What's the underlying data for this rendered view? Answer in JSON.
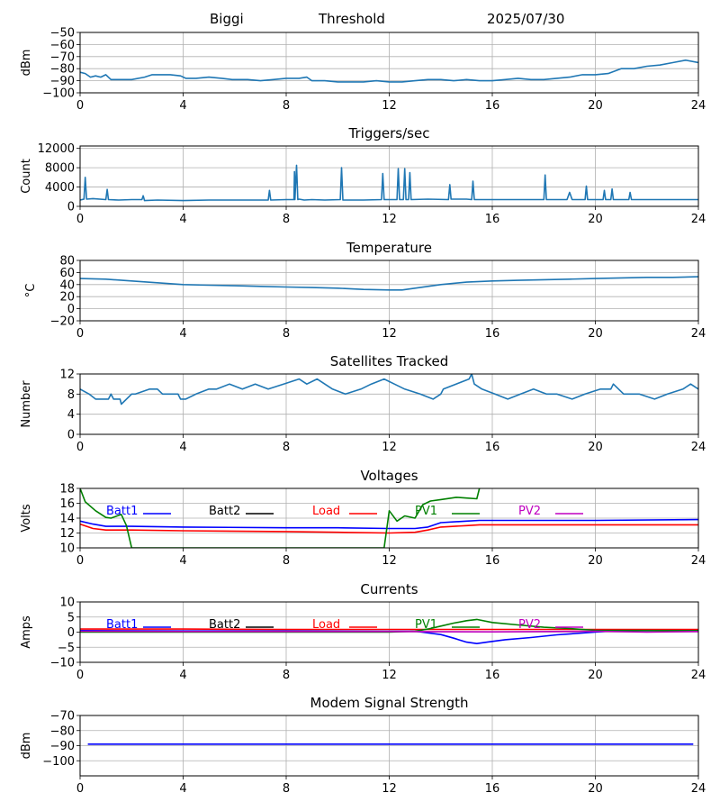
{
  "header": {
    "site": "Biggi",
    "mode": "Threshold",
    "date": "2025/07/30"
  },
  "colors": {
    "default": "#1f77b4",
    "batt1": "#0000ff",
    "batt2": "#000000",
    "load": "#ff0000",
    "pv1": "#008000",
    "pv2": "#bf00bf"
  },
  "chart_data": [
    {
      "type": "line",
      "title": "",
      "xlabel": "",
      "ylabel": "dBm",
      "xlim": [
        0,
        24
      ],
      "ylim": [
        -100,
        -50
      ],
      "xticks": [
        0,
        4,
        8,
        12,
        16,
        20,
        24
      ],
      "yticks": [
        -100,
        -90,
        -80,
        -70,
        -60,
        -50
      ],
      "grid": true,
      "series": [
        {
          "color": "#1f77b4",
          "x": [
            0,
            0.2,
            0.4,
            0.6,
            0.8,
            1.0,
            1.2,
            1.5,
            2.0,
            2.5,
            2.8,
            3.0,
            3.5,
            3.9,
            4.1,
            4.5,
            5.0,
            5.5,
            5.9,
            6.1,
            6.5,
            7.0,
            7.5,
            8.0,
            8.5,
            8.8,
            9.0,
            9.5,
            10,
            10.5,
            11,
            11.5,
            12,
            12.5,
            13,
            13.5,
            14,
            14.5,
            15,
            15.5,
            16,
            16.5,
            17,
            17.5,
            18,
            18.5,
            19,
            19.5,
            20,
            20.5,
            21,
            21.5,
            22,
            22.5,
            23,
            23.5,
            24
          ],
          "y": [
            -83,
            -84,
            -87,
            -86,
            -87,
            -85,
            -89,
            -89,
            -89,
            -87,
            -85,
            -85,
            -85,
            -86,
            -88,
            -88,
            -87,
            -88,
            -89,
            -89,
            -89,
            -90,
            -89,
            -88,
            -88,
            -87,
            -90,
            -90,
            -91,
            -91,
            -91,
            -90,
            -91,
            -91,
            -90,
            -89,
            -89,
            -90,
            -89,
            -90,
            -90,
            -89,
            -88,
            -89,
            -89,
            -88,
            -87,
            -85,
            -85,
            -84,
            -80,
            -80,
            -78,
            -77,
            -75,
            -73,
            -75
          ]
        }
      ]
    },
    {
      "type": "line",
      "title": "Triggers/sec",
      "xlabel": "",
      "ylabel": "Count",
      "xlim": [
        0,
        24
      ],
      "ylim": [
        0,
        12500
      ],
      "xticks": [
        0,
        4,
        8,
        12,
        16,
        20,
        24
      ],
      "yticks": [
        0,
        4000,
        8000,
        12000
      ],
      "grid": true,
      "series": [
        {
          "color": "#1f77b4",
          "x": [
            0,
            0.15,
            0.2,
            0.25,
            0.5,
            1.0,
            1.05,
            1.1,
            1.5,
            2.0,
            2.4,
            2.45,
            2.5,
            3.0,
            4.0,
            5.0,
            6.0,
            7.3,
            7.35,
            7.4,
            8.0,
            8.3,
            8.32,
            8.34,
            8.4,
            8.45,
            8.5,
            8.7,
            9.0,
            9.5,
            10.1,
            10.15,
            10.2,
            11.0,
            11.7,
            11.75,
            11.8,
            12.3,
            12.35,
            12.4,
            12.55,
            12.6,
            12.65,
            12.75,
            12.8,
            12.85,
            13.5,
            14.3,
            14.35,
            14.4,
            15.0,
            15.2,
            15.25,
            15.3,
            16.0,
            17.0,
            18.0,
            18.05,
            18.1,
            18.9,
            19.0,
            19.1,
            19.6,
            19.65,
            19.7,
            20.3,
            20.35,
            20.4,
            20.6,
            20.65,
            20.7,
            21.3,
            21.35,
            21.4,
            22,
            23,
            23.5,
            24
          ],
          "y": [
            1300,
            1500,
            6000,
            1500,
            1600,
            1400,
            3500,
            1400,
            1300,
            1400,
            1400,
            2200,
            1200,
            1300,
            1200,
            1300,
            1300,
            1300,
            3300,
            1300,
            1400,
            1400,
            7200,
            1400,
            8500,
            1400,
            1500,
            1300,
            1400,
            1300,
            1400,
            8000,
            1300,
            1300,
            1400,
            6800,
            1400,
            1400,
            7800,
            1400,
            1400,
            7800,
            1400,
            1400,
            7000,
            1400,
            1500,
            1400,
            4500,
            1500,
            1500,
            1400,
            5200,
            1400,
            1400,
            1400,
            1400,
            6500,
            1400,
            1400,
            2900,
            1400,
            1400,
            4200,
            1400,
            1400,
            3300,
            1400,
            1400,
            3600,
            1400,
            1400,
            2900,
            1400,
            1400,
            1400,
            1400,
            1400
          ]
        }
      ]
    },
    {
      "type": "line",
      "title": "Temperature",
      "xlabel": "",
      "ylabel": "°C",
      "xlim": [
        0,
        24
      ],
      "ylim": [
        -20,
        80
      ],
      "xticks": [
        0,
        4,
        8,
        12,
        16,
        20,
        24
      ],
      "yticks": [
        -20,
        0,
        20,
        40,
        60,
        80
      ],
      "grid": true,
      "series": [
        {
          "color": "#1f77b4",
          "x": [
            0,
            1,
            2,
            3,
            4,
            5,
            6,
            7,
            8,
            9,
            10,
            11,
            12,
            12.5,
            13,
            14,
            15,
            16,
            17,
            18,
            19,
            20,
            21,
            22,
            23,
            24
          ],
          "y": [
            50,
            49,
            46,
            43,
            40,
            39,
            38,
            37,
            36,
            35,
            34,
            32,
            31,
            31,
            34,
            40,
            44,
            46,
            47,
            48,
            49,
            50,
            51,
            52,
            52,
            53
          ]
        }
      ]
    },
    {
      "type": "line",
      "title": "Satellites Tracked",
      "xlabel": "",
      "ylabel": "Number",
      "xlim": [
        0,
        24
      ],
      "ylim": [
        0,
        12
      ],
      "xticks": [
        0,
        4,
        8,
        12,
        16,
        20,
        24
      ],
      "yticks": [
        0,
        4,
        8,
        12
      ],
      "grid": true,
      "series": [
        {
          "color": "#1f77b4",
          "x": [
            0,
            0.35,
            0.6,
            1.1,
            1.2,
            1.3,
            1.35,
            1.55,
            1.6,
            2.0,
            2.15,
            2.7,
            3.0,
            3.2,
            3.3,
            3.6,
            3.8,
            3.9,
            4.1,
            4.5,
            5.0,
            5.3,
            5.8,
            6.3,
            6.8,
            7.3,
            7.9,
            8.5,
            8.8,
            9.2,
            9.8,
            10.3,
            10.9,
            11.3,
            11.8,
            12.2,
            12.6,
            13.2,
            13.7,
            14.0,
            14.1,
            15.1,
            15.2,
            15.3,
            15.6,
            16.1,
            16.6,
            17.1,
            17.6,
            18.1,
            18.5,
            19.1,
            19.6,
            20.2,
            20.6,
            20.7,
            21.1,
            21.7,
            22.3,
            22.8,
            23.4,
            23.7,
            24
          ],
          "y": [
            9,
            8,
            7,
            7,
            8,
            7,
            7,
            7,
            6,
            8,
            8,
            9,
            9,
            8,
            8,
            8,
            8,
            7,
            7,
            8,
            9,
            9,
            10,
            9,
            10,
            9,
            10,
            11,
            10,
            11,
            9,
            8,
            9,
            10,
            11,
            10,
            9,
            8,
            7,
            8,
            9,
            11,
            12,
            10,
            9,
            8,
            7,
            8,
            9,
            8,
            8,
            7,
            8,
            9,
            9,
            10,
            8,
            8,
            7,
            8,
            9,
            10,
            9
          ]
        }
      ]
    },
    {
      "type": "line",
      "title": "Voltages",
      "xlabel": "",
      "ylabel": "Volts",
      "xlim": [
        0,
        24
      ],
      "ylim": [
        10,
        18
      ],
      "xticks": [
        0,
        4,
        8,
        12,
        16,
        20,
        24
      ],
      "yticks": [
        10,
        12,
        14,
        16,
        18
      ],
      "grid": true,
      "legend": "top inline",
      "series": [
        {
          "name": "Batt1",
          "color": "#0000ff",
          "x": [
            0,
            0.5,
            1,
            2,
            4,
            8,
            10,
            12,
            13,
            13.5,
            14,
            15,
            15.5,
            16,
            20,
            24
          ],
          "y": [
            13.6,
            13.2,
            12.9,
            12.9,
            12.8,
            12.7,
            12.7,
            12.6,
            12.6,
            12.8,
            13.4,
            13.6,
            13.7,
            13.7,
            13.7,
            13.8
          ]
        },
        {
          "name": "Batt2",
          "color": "#000000",
          "x": [],
          "y": []
        },
        {
          "name": "Load",
          "color": "#ff0000",
          "x": [
            0,
            0.5,
            1,
            2,
            4,
            8,
            10,
            12,
            13,
            13.5,
            14,
            15,
            15.5,
            16,
            20,
            24
          ],
          "y": [
            13.2,
            12.6,
            12.4,
            12.4,
            12.3,
            12.2,
            12.1,
            12.0,
            12.1,
            12.4,
            12.8,
            13.0,
            13.1,
            13.1,
            13.1,
            13.1
          ]
        },
        {
          "name": "PV1",
          "color": "#008000",
          "x": [
            0,
            0.2,
            0.6,
            1.0,
            1.2,
            1.6,
            1.8,
            2.0,
            11.8,
            12.0,
            12.3,
            12.6,
            13.0,
            13.3,
            13.6,
            14.0,
            14.6,
            15.0,
            15.4,
            15.5
          ],
          "y": [
            18.0,
            16.2,
            15.0,
            14.1,
            14.0,
            14.5,
            13.0,
            10.0,
            10.0,
            15.0,
            13.6,
            14.3,
            14.0,
            15.8,
            16.3,
            16.5,
            16.8,
            16.7,
            16.6,
            18.0
          ]
        },
        {
          "name": "PV2",
          "color": "#bf00bf",
          "x": [],
          "y": []
        }
      ]
    },
    {
      "type": "line",
      "title": "Currents",
      "xlabel": "",
      "ylabel": "Amps",
      "xlim": [
        0,
        24
      ],
      "ylim": [
        -10,
        10
      ],
      "xticks": [
        0,
        4,
        8,
        12,
        16,
        20,
        24
      ],
      "yticks": [
        -10,
        -5,
        0,
        5,
        10
      ],
      "grid": true,
      "legend": "top inline",
      "series": [
        {
          "name": "Batt1",
          "color": "#0000ff",
          "x": [
            0,
            4,
            8,
            12,
            13,
            14,
            14.5,
            15,
            15.4,
            15.8,
            16.5,
            17.5,
            18.5,
            19.5,
            20.5,
            22,
            24
          ],
          "y": [
            0.5,
            0.4,
            0.4,
            0.3,
            0.3,
            -0.8,
            -2.0,
            -3.3,
            -3.8,
            -3.3,
            -2.5,
            -1.8,
            -0.9,
            -0.3,
            0.3,
            0.5,
            0.4
          ]
        },
        {
          "name": "Batt2",
          "color": "#000000",
          "x": [],
          "y": []
        },
        {
          "name": "Load",
          "color": "#ff0000",
          "x": [
            0,
            4,
            8,
            12,
            16,
            20,
            24
          ],
          "y": [
            1.0,
            1.0,
            0.9,
            0.9,
            0.9,
            0.9,
            0.9
          ]
        },
        {
          "name": "PV1",
          "color": "#008000",
          "x": [
            0,
            12,
            13,
            13.5,
            14,
            14.5,
            15,
            15.4,
            16,
            17,
            18,
            19,
            20,
            24
          ],
          "y": [
            0.0,
            0.0,
            0.3,
            1.0,
            2.0,
            3.0,
            3.8,
            4.2,
            3.2,
            2.4,
            1.6,
            1.2,
            0.6,
            0.5
          ]
        },
        {
          "name": "PV2",
          "color": "#bf00bf",
          "x": [
            0,
            4,
            8,
            12,
            16,
            20,
            22,
            24
          ],
          "y": [
            0.3,
            0.2,
            0.2,
            0.2,
            0.1,
            0.3,
            0.0,
            0.2
          ]
        }
      ]
    },
    {
      "type": "line",
      "title": "Modem Signal Strength",
      "xlabel": "",
      "ylabel": "dBm",
      "xlim": [
        0,
        24
      ],
      "ylim": [
        -110,
        -70
      ],
      "xticks": [
        0,
        4,
        8,
        12,
        16,
        20,
        24
      ],
      "yticks": [
        -100,
        -90,
        -80,
        -70
      ],
      "grid": true,
      "series": [
        {
          "color": "#0000ff",
          "x": [
            0.3,
            23.8
          ],
          "y": [
            -89,
            -89
          ]
        }
      ]
    }
  ]
}
